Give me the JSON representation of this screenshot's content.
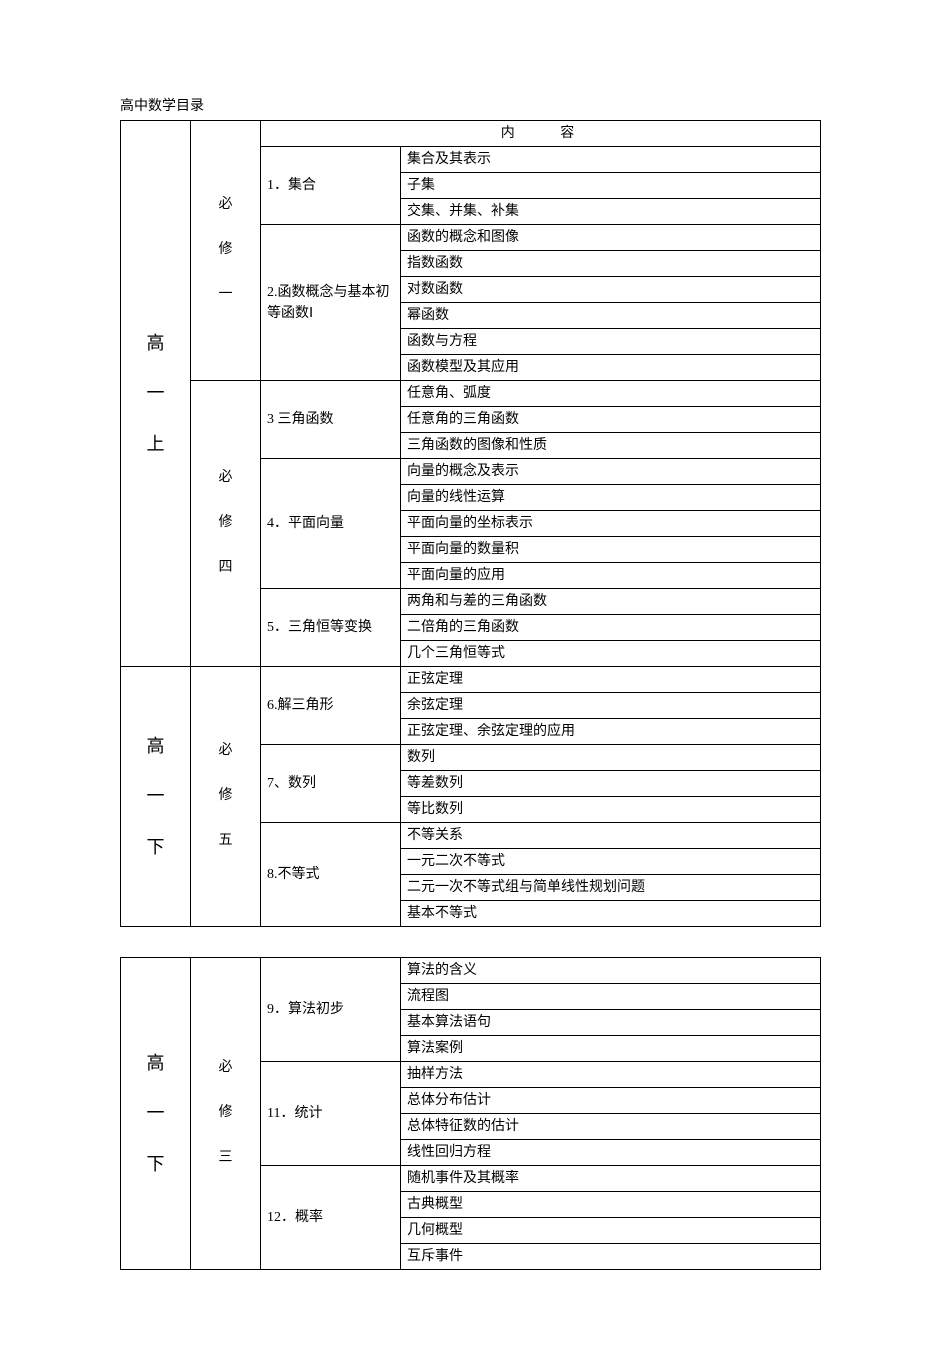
{
  "page_title": "高中数学目录",
  "header_cell": "内 容",
  "tables": [
    {
      "blocks": [
        {
          "grade": "高\n一\n上",
          "book": "必\n修\n一",
          "chapters": [
            {
              "title": "1．集合",
              "sections": [
                "集合及其表示",
                "子集",
                "交集、并集、补集"
              ]
            },
            {
              "title": "2.函数概念与基本初等函数Ⅰ",
              "sections": [
                "函数的概念和图像",
                "指数函数",
                "对数函数",
                "幂函数",
                "函数与方程",
                "函数模型及其应用"
              ]
            }
          ]
        },
        {
          "grade": "",
          "book": "必\n修\n四",
          "chapters": [
            {
              "title": "3 三角函数",
              "sections": [
                "任意角、弧度",
                "任意角的三角函数",
                "三角函数的图像和性质"
              ]
            },
            {
              "title": "4．平面向量",
              "sections": [
                "向量的概念及表示",
                "向量的线性运算",
                "平面向量的坐标表示",
                "平面向量的数量积",
                "平面向量的应用"
              ]
            },
            {
              "title": "5．三角恒等变换",
              "sections": [
                "两角和与差的三角函数",
                "二倍角的三角函数",
                "几个三角恒等式"
              ]
            }
          ]
        },
        {
          "grade": "高\n一\n下",
          "book": "必\n修\n五",
          "chapters": [
            {
              "title": "6.解三角形",
              "sections": [
                "正弦定理",
                "余弦定理",
                "正弦定理、余弦定理的应用"
              ]
            },
            {
              "title": "7、数列",
              "sections": [
                "数列",
                "等差数列",
                "等比数列"
              ]
            },
            {
              "title": "8.不等式",
              "sections": [
                "不等关系",
                "一元二次不等式",
                "二元一次不等式组与简单线性规划问题",
                "基本不等式"
              ]
            }
          ]
        }
      ]
    },
    {
      "blocks": [
        {
          "grade": "高\n一\n下",
          "book": "必\n修\n三",
          "chapters": [
            {
              "title": "9．算法初步",
              "sections": [
                "算法的含义",
                "流程图",
                "基本算法语句",
                "算法案例"
              ]
            },
            {
              "title": "11．统计",
              "sections": [
                "抽样方法",
                "总体分布估计",
                "总体特征数的估计",
                "线性回归方程"
              ]
            },
            {
              "title": "12．概率",
              "sections": [
                "随机事件及其概率",
                "古典概型",
                "几何概型",
                "互斥事件"
              ]
            }
          ]
        }
      ]
    }
  ]
}
